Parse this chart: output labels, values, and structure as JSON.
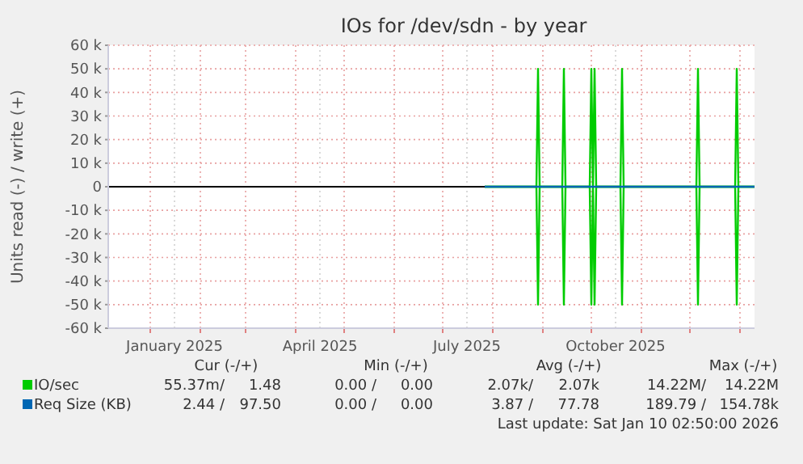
{
  "chart_data": {
    "type": "line",
    "title": "IOs for /dev/sdn - by year",
    "ylabel": "Units read (-) / write (+)",
    "xlim": [
      "2024-12-06",
      "2026-01-10"
    ],
    "xticks": [
      {
        "value": "2025-01-01",
        "label": null
      },
      {
        "value": "2025-01-16",
        "label": "January 2025"
      },
      {
        "value": "2025-02-01",
        "label": null
      },
      {
        "value": "2025-03-01",
        "label": null
      },
      {
        "value": "2025-04-01",
        "label": null
      },
      {
        "value": "2025-04-16",
        "label": "April 2025"
      },
      {
        "value": "2025-05-01",
        "label": null
      },
      {
        "value": "2025-06-01",
        "label": null
      },
      {
        "value": "2025-07-01",
        "label": null
      },
      {
        "value": "2025-07-16",
        "label": "July 2025"
      },
      {
        "value": "2025-08-01",
        "label": null
      },
      {
        "value": "2025-09-01",
        "label": null
      },
      {
        "value": "2025-10-01",
        "label": null
      },
      {
        "value": "2025-10-16",
        "label": "October 2025"
      },
      {
        "value": "2025-11-01",
        "label": null
      },
      {
        "value": "2025-12-01",
        "label": null
      },
      {
        "value": "2026-01-01",
        "label": null
      }
    ],
    "ylim": [
      -60000,
      60000
    ],
    "yticks": [
      {
        "value": -60000,
        "label": "-60 k"
      },
      {
        "value": -50000,
        "label": "-50 k"
      },
      {
        "value": -40000,
        "label": "-40 k"
      },
      {
        "value": -30000,
        "label": "-30 k"
      },
      {
        "value": -20000,
        "label": "-20 k"
      },
      {
        "value": -10000,
        "label": "-10 k"
      },
      0,
      {
        "value": 10000,
        "label": "10 k"
      },
      {
        "value": 20000,
        "label": "20 k"
      },
      {
        "value": 30000,
        "label": "30 k"
      },
      {
        "value": 40000,
        "label": "40 k"
      },
      {
        "value": 50000,
        "label": "50 k"
      },
      {
        "value": 60000,
        "label": "60 k"
      }
    ],
    "grid": true,
    "legend": "bottom",
    "marker": "none",
    "line_style": "solid",
    "series": [
      {
        "name": "IO/sec",
        "color": "#00cc00",
        "x": [
          "2025-07-27",
          "2025-08-28",
          "2025-08-29",
          "2025-08-30",
          "2025-09-13",
          "2025-09-14",
          "2025-09-15",
          "2025-09-30",
          "2025-10-01",
          "2025-10-02",
          "2025-10-03",
          "2025-10-04",
          "2025-10-19",
          "2025-10-20",
          "2025-10-21",
          "2025-12-05",
          "2025-12-06",
          "2025-12-07",
          "2025-12-29",
          "2025-12-30",
          "2025-12-31",
          "2026-01-10"
        ],
        "values": [
          0,
          0,
          50000,
          0,
          0,
          50000,
          0,
          0,
          50000,
          0,
          50000,
          0,
          0,
          50000,
          0,
          0,
          50000,
          0,
          0,
          50000,
          0,
          0
        ]
      },
      {
        "color": "#00cc00",
        "x": [
          "2025-07-27",
          "2025-08-28",
          "2025-08-29",
          "2025-08-30",
          "2025-09-13",
          "2025-09-14",
          "2025-09-15",
          "2025-09-30",
          "2025-10-01",
          "2025-10-02",
          "2025-10-03",
          "2025-10-04",
          "2025-10-19",
          "2025-10-20",
          "2025-10-21",
          "2025-12-05",
          "2025-12-06",
          "2025-12-07",
          "2025-12-29",
          "2025-12-30",
          "2025-12-31",
          "2026-01-10"
        ],
        "values": [
          0,
          0,
          -50000,
          0,
          0,
          -50000,
          0,
          0,
          -50000,
          0,
          -50000,
          0,
          0,
          -50000,
          0,
          0,
          -50000,
          0,
          0,
          -50000,
          0,
          0
        ]
      },
      {
        "name": "Req Size (KB)",
        "color": "#0066b3",
        "x": [
          "2025-07-27",
          "2026-01-10"
        ],
        "values": [
          0,
          0
        ]
      }
    ],
    "annotations": [
      "Cur (-/+)",
      "Min (-/+)",
      "Avg (-/+)",
      "Max (-/+)",
      "55.37m/",
      "1.48",
      "0.00 /",
      "0.00",
      "2.07k/",
      "2.07k",
      "14.22M/",
      "14.22M",
      "2.44 /",
      "97.50",
      "0.00 /",
      "0.00",
      "3.87 /",
      "77.78",
      "189.79 /",
      "154.78k",
      "Last update: Sat Jan 10 02:50:00 2026"
    ]
  }
}
